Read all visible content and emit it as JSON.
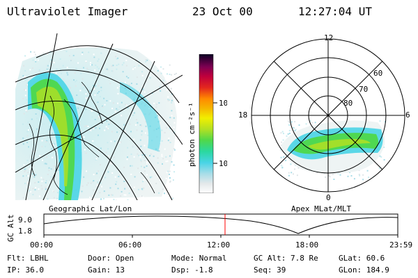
{
  "header": {
    "title": "Ultraviolet Imager",
    "date": "23 Oct 00",
    "time": "12:27:04 UT"
  },
  "colorbar": {
    "label": "photon cm⁻²s⁻¹",
    "ticks": [
      "100",
      "10"
    ],
    "colors": [
      "#ffffff",
      "#e3e8ea",
      "#a8dde8",
      "#49d4e6",
      "#2ad8a0",
      "#4fd84a",
      "#b2e023",
      "#f1ef00",
      "#f5b700",
      "#ff8a00",
      "#e3271e",
      "#c0003c",
      "#7d0052",
      "#320046",
      "#0c0024"
    ]
  },
  "left_panel": {
    "caption": "Geographic Lat/Lon"
  },
  "right_panel": {
    "caption": "Apex MLat/MLT",
    "mlt_labels": {
      "top": "12",
      "left": "18",
      "right": "6",
      "bottom": "0"
    },
    "lat_labels": [
      "60",
      "70",
      "80"
    ]
  },
  "timeline": {
    "ylabel": "GC Alt",
    "yticks": [
      "9.0",
      "1.8"
    ],
    "xticks": [
      "00:00",
      "06:00",
      "12:00",
      "18:00",
      "23:59"
    ],
    "marker_color": "#ff0000"
  },
  "info": {
    "row1": [
      {
        "label": "Flt:",
        "value": "LBHL"
      },
      {
        "label": "Door:",
        "value": "Open"
      },
      {
        "label": "Mode:",
        "value": "Normal"
      },
      {
        "label": "GC Alt:",
        "value": "7.8 Re"
      },
      {
        "label": "GLat:",
        "value": "60.6"
      }
    ],
    "row2": [
      {
        "label": "IP:",
        "value": "36.0"
      },
      {
        "label": "Gain:",
        "value": "13"
      },
      {
        "label": "Dsp:",
        "value": "-1.8"
      },
      {
        "label": "Seq:",
        "value": "39"
      },
      {
        "label": "GLon:",
        "value": "184.9"
      }
    ]
  }
}
